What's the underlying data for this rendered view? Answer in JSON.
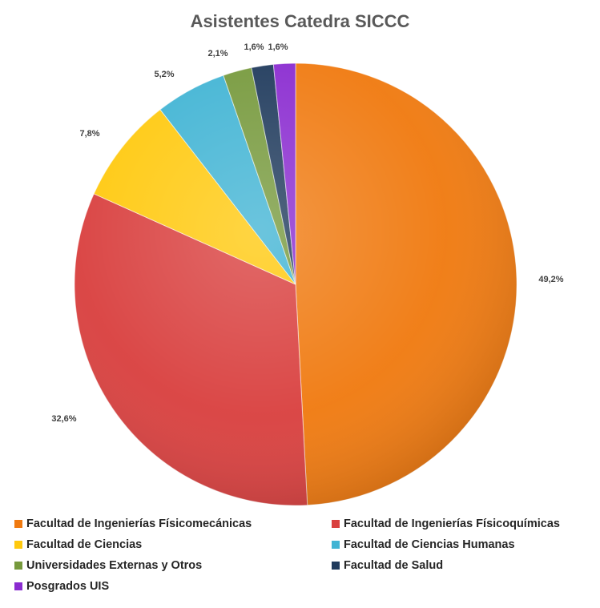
{
  "chart_data": {
    "type": "pie",
    "title": "Asistentes Catedra SICCC",
    "start_angle_deg": 0,
    "direction": "clockwise",
    "legend_position": "bottom",
    "slices": [
      {
        "label": "Facultad de Ingenierías Físicomecánicas",
        "value": 49.2,
        "value_label": "49,2%",
        "color": "#F07A10"
      },
      {
        "label": "Facultad de Ingenierías Físicoquímicas",
        "value": 32.6,
        "value_label": "32,6%",
        "color": "#D9403F"
      },
      {
        "label": "Facultad de Ciencias",
        "value": 7.8,
        "value_label": "7,8%",
        "color": "#FFC90E"
      },
      {
        "label": "Facultad de Ciencias Humanas",
        "value": 5.2,
        "value_label": "5,2%",
        "color": "#41B4D4"
      },
      {
        "label": "Universidades Externas y Otros",
        "value": 2.1,
        "value_label": "2,1%",
        "color": "#76993C"
      },
      {
        "label": "Facultad de Salud",
        "value": 1.6,
        "value_label": "1,6%",
        "color": "#1F3A5C"
      },
      {
        "label": "Posgrados UIS",
        "value": 1.6,
        "value_label": "1,6%",
        "color": "#8A2BD0"
      }
    ]
  }
}
